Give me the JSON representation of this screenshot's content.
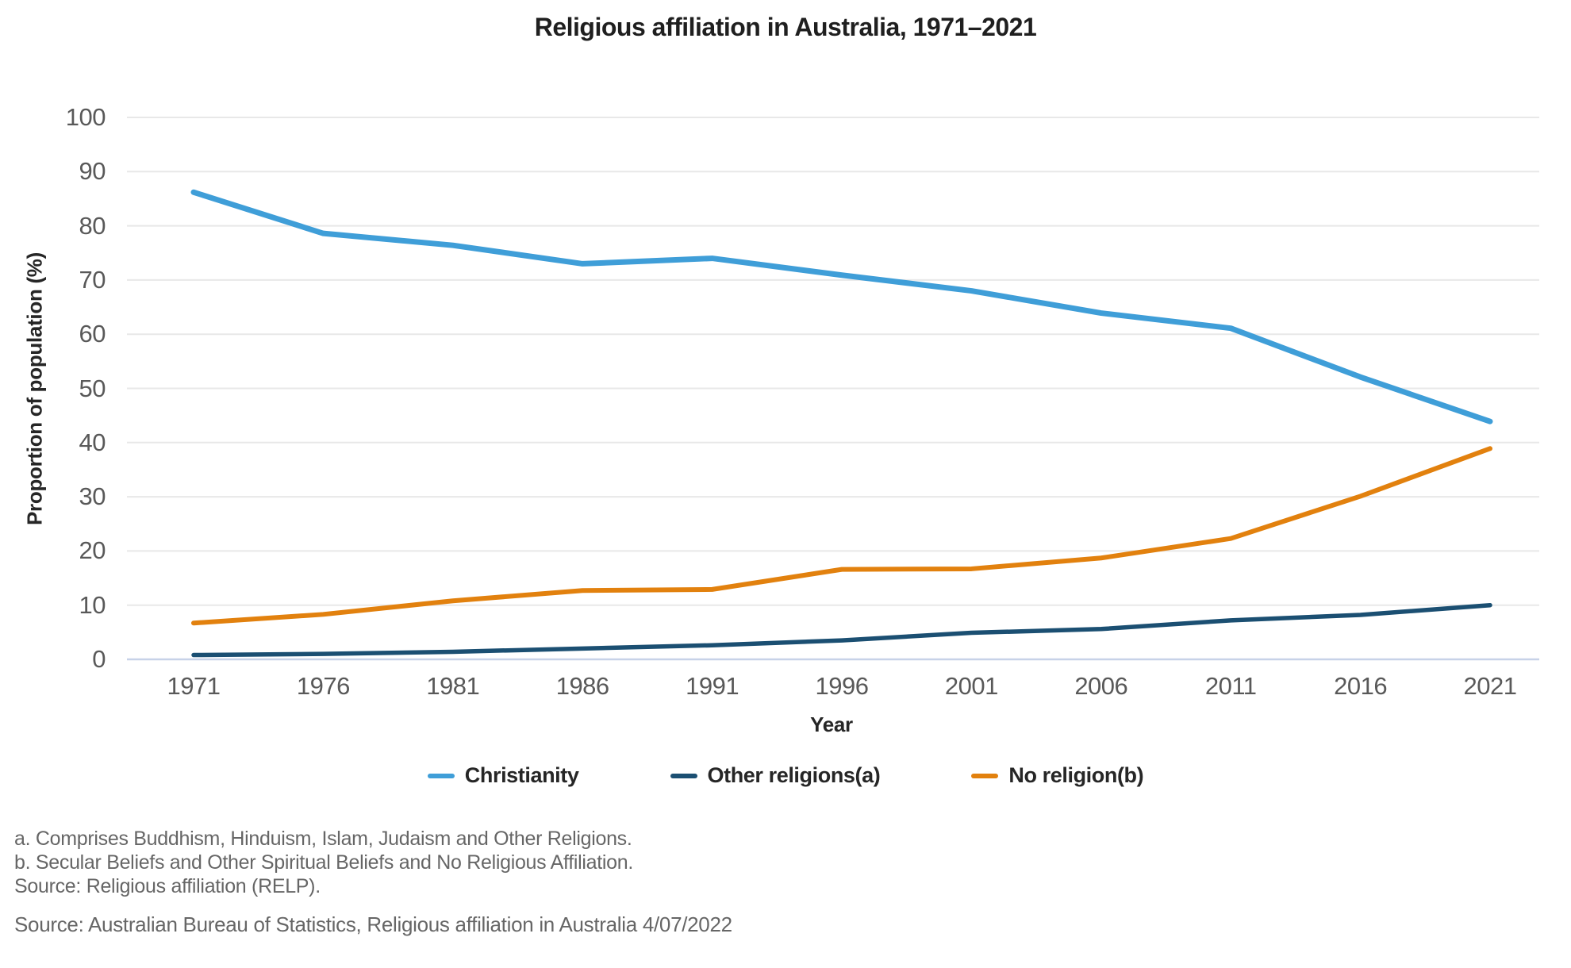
{
  "title": "Religious affiliation in Australia, 1971–2021",
  "colors": {
    "christianity": "#3f9ed8",
    "other_religions": "#1b4f72",
    "no_religion": "#e2810e",
    "grid": "#e8e8e8",
    "zero_line": "#c7d2e8",
    "tick_text": "#595959",
    "heading_text": "#262626",
    "note_text": "#666666"
  },
  "chart_data": {
    "type": "line",
    "title": "Religious affiliation in Australia, 1971–2021",
    "xlabel": "Year",
    "ylabel": "Proportion of population (%)",
    "ylim": [
      0,
      100
    ],
    "y_ticks": [
      0,
      10,
      20,
      30,
      40,
      50,
      60,
      70,
      80,
      90,
      100
    ],
    "grid": true,
    "legend_position": "bottom",
    "categories": [
      "1971",
      "1976",
      "1981",
      "1986",
      "1991",
      "1996",
      "2001",
      "2006",
      "2011",
      "2016",
      "2021"
    ],
    "series": [
      {
        "key": "christianity",
        "name": "Christianity",
        "color": "#3f9ed8",
        "values": [
          86.2,
          78.6,
          76.4,
          73.0,
          74.0,
          70.9,
          68.0,
          63.9,
          61.1,
          52.1,
          43.9
        ]
      },
      {
        "key": "other-religions",
        "name": "Other religions(a)",
        "color": "#1b4f72",
        "values": [
          0.8,
          1.0,
          1.4,
          2.0,
          2.6,
          3.5,
          4.9,
          5.6,
          7.2,
          8.2,
          10.0
        ]
      },
      {
        "key": "no-religion",
        "name": "No religion(b)",
        "color": "#e2810e",
        "values": [
          6.7,
          8.3,
          10.8,
          12.7,
          12.9,
          16.6,
          16.7,
          18.7,
          22.3,
          30.1,
          38.9
        ]
      }
    ]
  },
  "footnotes": {
    "a": "a. Comprises Buddhism, Hinduism, Islam, Judaism and Other Religions.",
    "b": "b. Secular Beliefs and Other Spiritual Beliefs and No Religious Affiliation.",
    "source_note": "Source: Religious affiliation (RELP)."
  },
  "source_line": "Source: Australian Bureau of Statistics, Religious affiliation in Australia 4/07/2022"
}
